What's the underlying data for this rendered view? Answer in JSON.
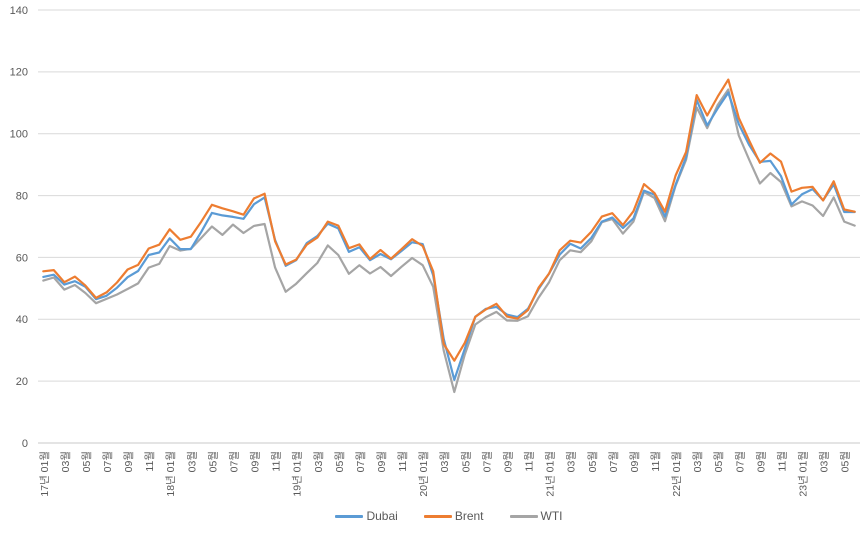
{
  "chart_data": {
    "type": "line",
    "title": "",
    "xlabel": "",
    "ylabel": "",
    "ylim": [
      0,
      140
    ],
    "yticks": [
      0,
      20,
      40,
      60,
      80,
      100,
      120,
      140
    ],
    "grid": true,
    "legend_position": "bottom",
    "axis_text_color": "#595959",
    "gridline_color": "#D9D9D9",
    "axis_line_color": "#C9C9C9",
    "background": "#FFFFFF",
    "x_tick_every": 2,
    "x_tick_labels": [
      "17년 01월",
      "03월",
      "05월",
      "07월",
      "09월",
      "11월",
      "18년 01월",
      "03월",
      "05월",
      "07월",
      "09월",
      "11월",
      "19년 01월",
      "03월",
      "05월",
      "07월",
      "09월",
      "11월",
      "20년 01월",
      "03월",
      "05월",
      "07월",
      "09월",
      "11월",
      "21년 01월",
      "03월",
      "05월",
      "07월",
      "09월",
      "11월",
      "22년 01월",
      "03월",
      "05월",
      "07월",
      "09월",
      "11월",
      "23년 01월",
      "03월",
      "05월"
    ],
    "categories": [
      "2017-01",
      "2017-02",
      "2017-03",
      "2017-04",
      "2017-05",
      "2017-06",
      "2017-07",
      "2017-08",
      "2017-09",
      "2017-10",
      "2017-11",
      "2017-12",
      "2018-01",
      "2018-02",
      "2018-03",
      "2018-04",
      "2018-05",
      "2018-06",
      "2018-07",
      "2018-08",
      "2018-09",
      "2018-10",
      "2018-11",
      "2018-12",
      "2019-01",
      "2019-02",
      "2019-03",
      "2019-04",
      "2019-05",
      "2019-06",
      "2019-07",
      "2019-08",
      "2019-09",
      "2019-10",
      "2019-11",
      "2019-12",
      "2020-01",
      "2020-02",
      "2020-03",
      "2020-04",
      "2020-05",
      "2020-06",
      "2020-07",
      "2020-08",
      "2020-09",
      "2020-10",
      "2020-11",
      "2020-12",
      "2021-01",
      "2021-02",
      "2021-03",
      "2021-04",
      "2021-05",
      "2021-06",
      "2021-07",
      "2021-08",
      "2021-09",
      "2021-10",
      "2021-11",
      "2021-12",
      "2022-01",
      "2022-02",
      "2022-03",
      "2022-04",
      "2022-05",
      "2022-06",
      "2022-07",
      "2022-08",
      "2022-09",
      "2022-10",
      "2022-11",
      "2022-12",
      "2023-01",
      "2023-02",
      "2023-03",
      "2023-04",
      "2023-05",
      "2023-06"
    ],
    "series": [
      {
        "name": "Dubai",
        "color": "#5B9BD5",
        "values": [
          53.7,
          54.4,
          51.2,
          52.3,
          50.5,
          46.5,
          47.6,
          50.2,
          53.6,
          55.6,
          60.8,
          61.6,
          66.2,
          62.7,
          62.7,
          68.3,
          74.4,
          73.6,
          73.1,
          72.5,
          77.2,
          79.4,
          65.6,
          57.3,
          59.1,
          64.6,
          66.9,
          70.9,
          69.4,
          61.8,
          63.3,
          59.1,
          61.1,
          59.4,
          62.1,
          64.9,
          64.3,
          54.2,
          33.7,
          20.4,
          30.5,
          40.8,
          43.4,
          44.0,
          41.5,
          40.7,
          43.4,
          49.8,
          54.8,
          60.9,
          64.4,
          62.9,
          66.3,
          71.6,
          72.9,
          69.5,
          72.6,
          81.6,
          80.3,
          73.2,
          83.5,
          92.4,
          110.9,
          102.7,
          108.2,
          113.3,
          103.1,
          96.3,
          90.9,
          91.2,
          86.3,
          77.1,
          80.4,
          82.1,
          78.5,
          83.6,
          74.7,
          74.7
        ]
      },
      {
        "name": "Brent",
        "color": "#ED7D31",
        "values": [
          55.5,
          55.9,
          52.0,
          53.8,
          50.9,
          46.9,
          48.7,
          51.9,
          56.1,
          57.6,
          62.9,
          64.1,
          69.1,
          65.7,
          66.7,
          71.6,
          77.0,
          75.9,
          74.9,
          73.8,
          79.1,
          80.6,
          65.2,
          57.7,
          59.3,
          64.1,
          66.4,
          71.6,
          70.3,
          63.0,
          64.2,
          59.5,
          62.4,
          59.6,
          62.7,
          65.9,
          63.7,
          55.5,
          32.0,
          26.6,
          32.4,
          40.8,
          43.2,
          45.0,
          40.9,
          40.2,
          43.0,
          50.2,
          54.8,
          62.3,
          65.4,
          64.8,
          68.3,
          73.2,
          74.3,
          70.5,
          74.9,
          83.7,
          80.8,
          74.8,
          86.5,
          94.1,
          112.5,
          105.9,
          112.0,
          117.5,
          105.1,
          97.7,
          90.6,
          93.6,
          91.0,
          81.3,
          82.5,
          82.8,
          78.4,
          84.6,
          75.5,
          74.8
        ]
      },
      {
        "name": "WTI",
        "color": "#A5A5A5",
        "values": [
          52.5,
          53.5,
          49.6,
          51.1,
          48.5,
          45.2,
          46.6,
          48.0,
          49.8,
          51.6,
          56.7,
          57.9,
          63.7,
          62.2,
          62.8,
          66.3,
          70.0,
          67.3,
          70.6,
          67.9,
          70.2,
          70.8,
          56.7,
          48.9,
          51.5,
          54.9,
          58.2,
          63.9,
          60.8,
          54.7,
          57.5,
          54.8,
          56.9,
          54.0,
          57.0,
          59.8,
          57.5,
          50.5,
          29.9,
          16.5,
          28.6,
          38.3,
          40.7,
          42.4,
          39.6,
          39.5,
          41.0,
          47.0,
          52.0,
          59.1,
          62.3,
          61.7,
          65.2,
          71.4,
          72.4,
          67.7,
          71.6,
          81.2,
          79.2,
          71.7,
          83.2,
          91.6,
          108.5,
          101.8,
          109.3,
          114.3,
          99.4,
          91.5,
          83.9,
          87.3,
          84.4,
          76.5,
          78.1,
          76.8,
          73.4,
          79.4,
          71.6,
          70.3
        ]
      }
    ]
  }
}
